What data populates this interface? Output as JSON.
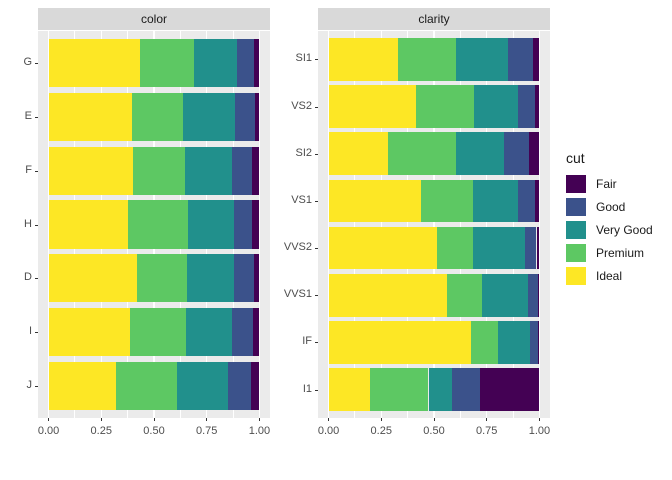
{
  "legend": {
    "title": "cut",
    "entries": [
      {
        "label": "Fair",
        "color": "#440154"
      },
      {
        "label": "Good",
        "color": "#3B528B"
      },
      {
        "label": "Very Good",
        "color": "#21908C"
      },
      {
        "label": "Premium",
        "color": "#5DC863"
      },
      {
        "label": "Ideal",
        "color": "#FDE725"
      }
    ]
  },
  "style": {
    "panel_bg": "#EBEBEB",
    "strip_bg": "#D9D9D9",
    "grid_color": "#FFFFFF",
    "axis_text_color": "#4D4D4D",
    "tick_mark_color": "#333333"
  },
  "chart_data": [
    {
      "type": "bar",
      "orientation": "horizontal",
      "stacked": true,
      "position": "fill",
      "facet_label": "color",
      "categories": [
        "G",
        "E",
        "F",
        "H",
        "D",
        "I",
        "J"
      ],
      "series": [
        {
          "name": "Ideal",
          "color": "#FDE725",
          "values": [
            0.433,
            0.398,
            0.401,
            0.375,
            0.418,
            0.386,
            0.319
          ]
        },
        {
          "name": "Premium",
          "color": "#5DC863",
          "values": [
            0.259,
            0.239,
            0.244,
            0.284,
            0.237,
            0.263,
            0.288
          ]
        },
        {
          "name": "Very Good",
          "color": "#21908C",
          "values": [
            0.204,
            0.245,
            0.227,
            0.22,
            0.223,
            0.222,
            0.241
          ]
        },
        {
          "name": "Good",
          "color": "#3B528B",
          "values": [
            0.077,
            0.095,
            0.095,
            0.085,
            0.098,
            0.096,
            0.109
          ]
        },
        {
          "name": "Fair",
          "color": "#440154",
          "values": [
            0.028,
            0.023,
            0.033,
            0.036,
            0.024,
            0.032,
            0.042
          ]
        }
      ],
      "xlim": [
        0,
        1
      ],
      "x_tick_values": [
        0,
        0.25,
        0.5,
        0.75,
        1
      ],
      "x_tick_labels": [
        "0.00",
        "0.25",
        "0.50",
        "0.75",
        "1.00"
      ],
      "grid": true,
      "xlabel": "",
      "ylabel": ""
    },
    {
      "type": "bar",
      "orientation": "horizontal",
      "stacked": true,
      "position": "fill",
      "facet_label": "clarity",
      "categories": [
        "SI1",
        "VS2",
        "SI2",
        "VS1",
        "VVS2",
        "VVS1",
        "IF",
        "I1"
      ],
      "series": [
        {
          "name": "Ideal",
          "color": "#FDE725",
          "values": [
            0.328,
            0.414,
            0.283,
            0.439,
            0.514,
            0.56,
            0.677,
            0.197
          ]
        },
        {
          "name": "Premium",
          "color": "#5DC863",
          "values": [
            0.274,
            0.274,
            0.321,
            0.243,
            0.172,
            0.169,
            0.129,
            0.277
          ]
        },
        {
          "name": "Very Good",
          "color": "#21908C",
          "values": [
            0.248,
            0.211,
            0.228,
            0.217,
            0.244,
            0.216,
            0.15,
            0.113
          ]
        },
        {
          "name": "Good",
          "color": "#3B528B",
          "values": [
            0.119,
            0.08,
            0.118,
            0.079,
            0.056,
            0.051,
            0.04,
            0.13
          ]
        },
        {
          "name": "Fair",
          "color": "#440154",
          "values": [
            0.031,
            0.021,
            0.051,
            0.021,
            0.014,
            0.005,
            0.005,
            0.283
          ]
        }
      ],
      "xlim": [
        0,
        1
      ],
      "x_tick_values": [
        0,
        0.25,
        0.5,
        0.75,
        1
      ],
      "x_tick_labels": [
        "0.00",
        "0.25",
        "0.50",
        "0.75",
        "1.00"
      ],
      "grid": true,
      "xlabel": "",
      "ylabel": ""
    }
  ]
}
